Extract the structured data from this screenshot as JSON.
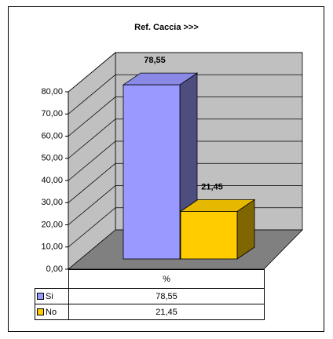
{
  "chart_data": {
    "type": "bar3d",
    "title": "Ref. Caccia >>>",
    "categories": [
      "%"
    ],
    "series": [
      {
        "name": "Si",
        "color": "#9999ff",
        "values": [
          78.55
        ],
        "value_labels": [
          "78,55"
        ]
      },
      {
        "name": "No",
        "color": "#ffcc00",
        "values": [
          21.45
        ],
        "value_labels": [
          "21,45"
        ]
      }
    ],
    "ylim": [
      0,
      80
    ],
    "yticks": [
      {
        "value": 0,
        "label": "0,00"
      },
      {
        "value": 10,
        "label": "10,00"
      },
      {
        "value": 20,
        "label": "20,00"
      },
      {
        "value": 30,
        "label": "30,00"
      },
      {
        "value": 40,
        "label": "40,00"
      },
      {
        "value": 50,
        "label": "50,00"
      },
      {
        "value": 60,
        "label": "60,00"
      },
      {
        "value": 70,
        "label": "70,00"
      },
      {
        "value": 80,
        "label": "80,00"
      }
    ],
    "grid": true,
    "data_table": true
  }
}
